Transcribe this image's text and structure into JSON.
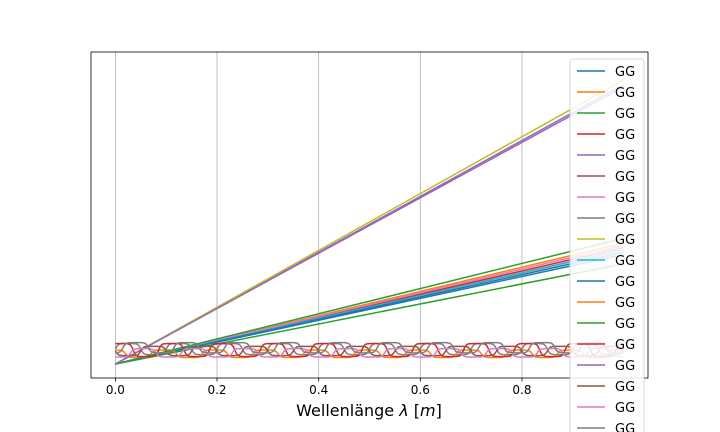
{
  "chart_data": {
    "type": "line",
    "xlabel": "Wellenlänge $\\lambda$ [$m$]",
    "xlabel_parts": {
      "text": "Wellenlänge ",
      "symbol": "λ",
      "unit_open": " [",
      "unit": "m",
      "unit_close": "]"
    },
    "xlim": [
      -0.048,
      1.048
    ],
    "ylim": [
      -0.03,
      0.67
    ],
    "x_ticks": [
      0.0,
      0.2,
      0.4,
      0.6,
      0.8
    ],
    "x_tick_labels": [
      "0.0",
      "0.2",
      "0.4",
      "0.6",
      "0.8"
    ],
    "grid": {
      "x": true,
      "y": false
    },
    "y_ticks_visible": false,
    "legend_placement": "upper-right",
    "series": [
      {
        "name": "GG",
        "color": "#1f77b4",
        "kind": "linear",
        "y0": 0.0,
        "slope": 0.235
      },
      {
        "name": "GG",
        "color": "#ff7f0e",
        "kind": "linear",
        "y0": 0.0,
        "slope": 0.26
      },
      {
        "name": "GG",
        "color": "#2ca02c",
        "kind": "linear",
        "y0": 0.0,
        "slope": 0.215
      },
      {
        "name": "GG",
        "color": "#d62728",
        "kind": "linear",
        "y0": 0.0,
        "slope": 0.25
      },
      {
        "name": "GG",
        "color": "#9467bd",
        "kind": "linear",
        "y0": 0.0,
        "slope": 0.6
      },
      {
        "name": "GG",
        "color": "#8c564b",
        "kind": "linear",
        "y0": 0.0,
        "slope": 0.245
      },
      {
        "name": "GG",
        "color": "#e377c2",
        "kind": "linear",
        "y0": 0.0,
        "slope": 0.255
      },
      {
        "name": "GG",
        "color": "#7f7f7f",
        "kind": "wave",
        "y0": 0.032,
        "amp": 0.012,
        "period": 0.1,
        "phase": 0.0
      },
      {
        "name": "GG",
        "color": "#bcbd22",
        "kind": "linear",
        "y0": 0.0,
        "slope": 0.61
      },
      {
        "name": "GG",
        "color": "#17becf",
        "kind": "linear",
        "y0": 0.0,
        "slope": 0.245
      },
      {
        "name": "GG",
        "color": "#1f77b4",
        "kind": "linear",
        "y0": 0.0,
        "slope": 0.24
      },
      {
        "name": "GG",
        "color": "#ff7f0e",
        "kind": "wave",
        "y0": 0.022,
        "amp": 0.008,
        "period": 0.1,
        "phase": 0.3
      },
      {
        "name": "GG",
        "color": "#2ca02c",
        "kind": "linear",
        "y0": 0.0,
        "slope": 0.27
      },
      {
        "name": "GG",
        "color": "#d62728",
        "kind": "wave",
        "y0": 0.03,
        "amp": 0.014,
        "period": 0.1,
        "phase": 0.15
      },
      {
        "name": "GG",
        "color": "#9467bd",
        "kind": "linear",
        "y0": 0.0,
        "slope": 0.595
      },
      {
        "name": "GG",
        "color": "#8c564b",
        "kind": "wave",
        "y0": 0.028,
        "amp": 0.01,
        "period": 0.1,
        "phase": 0.5
      },
      {
        "name": "GG",
        "color": "#e377c2",
        "kind": "wave",
        "y0": 0.024,
        "amp": 0.009,
        "period": 0.1,
        "phase": 0.7
      },
      {
        "name": "GG",
        "color": "#7f7f7f",
        "kind": "wave",
        "y0": 0.035,
        "amp": 0.011,
        "period": 0.1,
        "phase": 0.85
      }
    ]
  }
}
